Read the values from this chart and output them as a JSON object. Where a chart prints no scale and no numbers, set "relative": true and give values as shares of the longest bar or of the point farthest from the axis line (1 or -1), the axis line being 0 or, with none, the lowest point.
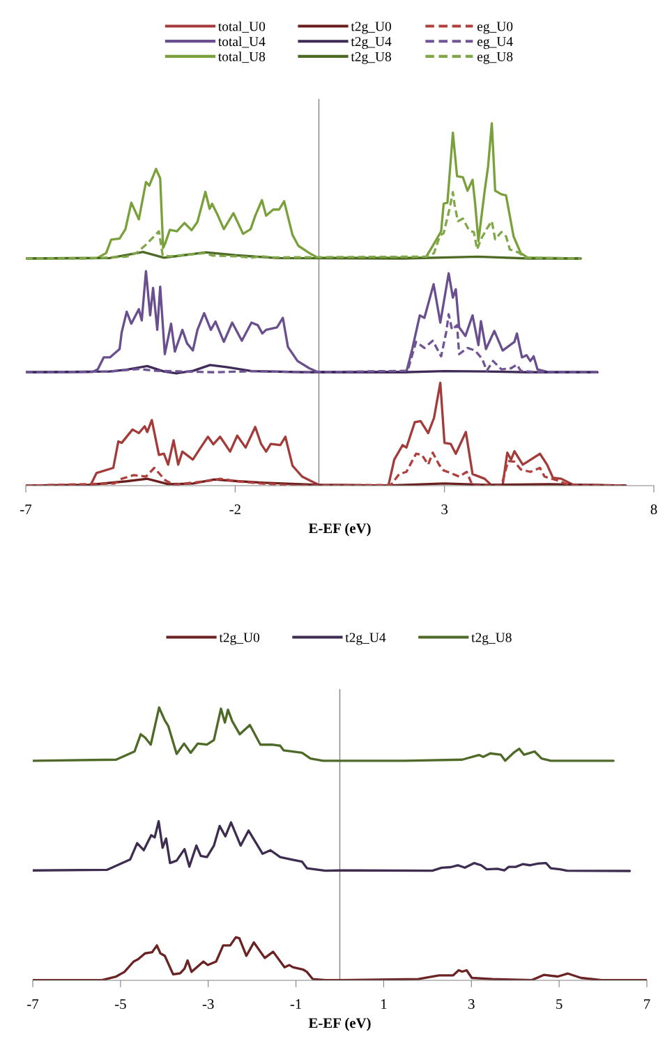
{
  "chart_data": [
    {
      "type": "line",
      "relative": true,
      "xlabel": "E-EF (eV)",
      "xlim": [
        -7,
        8
      ],
      "xticks": [
        -7,
        -2,
        3,
        8
      ],
      "tick_labels": "x",
      "grid": false,
      "legend": "top",
      "ref_lines": [
        {
          "axis": "x",
          "value": 0,
          "color": "#808080"
        }
      ],
      "series": [
        {
          "name": "total_U0",
          "color": "#a23b3a",
          "line_style": "solid",
          "x": [
            -7,
            -5.45,
            -5.31,
            -4.91,
            -4.79,
            -4.71,
            -4.45,
            -4.3,
            -4.16,
            -4.1,
            -3.99,
            -3.82,
            -3.7,
            -3.6,
            -3.47,
            -3.36,
            -3.26,
            -3.01,
            -2.84,
            -2.65,
            -2.52,
            -2.36,
            -2.12,
            -1.95,
            -1.75,
            -1.52,
            -1.38,
            -1.26,
            -1.15,
            -0.92,
            -0.8,
            -0.63,
            -0.4,
            0.0,
            1.66,
            1.8,
            2.0,
            2.09,
            2.29,
            2.43,
            2.61,
            2.75,
            2.9,
            3.0,
            3.15,
            3.27,
            3.51,
            3.67,
            3.96,
            4.13,
            4.39,
            4.5,
            4.59,
            4.67,
            4.87,
            5.28,
            5.45,
            5.59,
            5.79,
            6.08,
            7.33
          ],
          "values": [
            0,
            0.002,
            0.035,
            0.049,
            0.122,
            0.118,
            0.155,
            0.145,
            0.164,
            0.148,
            0.181,
            0.085,
            0.088,
            0.058,
            0.125,
            0.058,
            0.094,
            0.072,
            0.102,
            0.135,
            0.114,
            0.135,
            0.094,
            0.138,
            0.105,
            0.162,
            0.115,
            0.094,
            0.115,
            0.112,
            0.135,
            0.055,
            0.025,
            0.002,
            0,
            0.072,
            0.112,
            0.105,
            0.175,
            0.178,
            0.145,
            0.187,
            0.284,
            0.118,
            0.115,
            0.088,
            0.148,
            0.032,
            0.019,
            0,
            0.002,
            0.091,
            0.072,
            0.095,
            0.058,
            0.088,
            0.058,
            0.022,
            0.019,
            0.002,
            0
          ]
        },
        {
          "name": "total_U4",
          "color": "#6a4f8e",
          "line_style": "solid",
          "x": [
            -7,
            -5.4,
            -5.28,
            -5.14,
            -4.99,
            -4.76,
            -4.71,
            -4.59,
            -4.48,
            -4.3,
            -4.23,
            -4.13,
            -4.03,
            -3.96,
            -3.86,
            -3.79,
            -3.68,
            -3.53,
            -3.44,
            -3.26,
            -3.15,
            -3.01,
            -2.9,
            -2.74,
            -2.58,
            -2.47,
            -2.27,
            -2.07,
            -1.84,
            -1.61,
            -1.46,
            -1.35,
            -1.26,
            -1.0,
            -0.86,
            -0.74,
            -0.51,
            -0.23,
            -0.03,
            2.09,
            2.23,
            2.41,
            2.52,
            2.74,
            2.9,
            3.1,
            3.2,
            3.27,
            3.35,
            3.5,
            3.67,
            3.81,
            3.87,
            3.99,
            4.19,
            4.39,
            4.67,
            4.73,
            4.85,
            4.96,
            5.05,
            5.13,
            5.22,
            5.45,
            6.65
          ],
          "values": [
            0.313,
            0.314,
            0.321,
            0.354,
            0.354,
            0.377,
            0.423,
            0.48,
            0.447,
            0.487,
            0.456,
            0.592,
            0.47,
            0.546,
            0.43,
            0.549,
            0.363,
            0.447,
            0.37,
            0.43,
            0.393,
            0.373,
            0.43,
            0.476,
            0.43,
            0.453,
            0.397,
            0.45,
            0.4,
            0.45,
            0.443,
            0.42,
            0.43,
            0.437,
            0.463,
            0.383,
            0.344,
            0.324,
            0.314,
            0.314,
            0.377,
            0.47,
            0.463,
            0.556,
            0.45,
            0.586,
            0.519,
            0.542,
            0.437,
            0.413,
            0.47,
            0.388,
            0.454,
            0.377,
            0.427,
            0.373,
            0.397,
            0.42,
            0.354,
            0.36,
            0.344,
            0.357,
            0.321,
            0.314,
            0.313
          ]
        },
        {
          "name": "total_U8",
          "color": "#7aa03c",
          "line_style": "solid",
          "x": [
            -7,
            -5.28,
            -5.08,
            -4.96,
            -4.76,
            -4.62,
            -4.48,
            -4.3,
            -4.13,
            -4.05,
            -3.89,
            -3.79,
            -3.72,
            -3.67,
            -3.56,
            -3.39,
            -3.21,
            -3.04,
            -2.9,
            -2.71,
            -2.61,
            -2.55,
            -2.41,
            -2.27,
            -2.04,
            -1.81,
            -1.63,
            -1.52,
            -1.36,
            -1.26,
            -1.09,
            -0.95,
            -0.83,
            -0.63,
            -0.49,
            -0.23,
            -0.03,
            2.55,
            2.75,
            2.92,
            2.98,
            3.07,
            3.2,
            3.3,
            3.44,
            3.55,
            3.67,
            3.73,
            3.81,
            3.96,
            4.04,
            4.13,
            4.21,
            4.36,
            4.47,
            4.65,
            4.82,
            4.99,
            6.25
          ],
          "values": [
            0.627,
            0.629,
            0.642,
            0.679,
            0.682,
            0.708,
            0.781,
            0.735,
            0.838,
            0.828,
            0.874,
            0.848,
            0.656,
            0.669,
            0.706,
            0.702,
            0.725,
            0.705,
            0.728,
            0.811,
            0.764,
            0.778,
            0.745,
            0.708,
            0.752,
            0.695,
            0.708,
            0.745,
            0.788,
            0.745,
            0.762,
            0.762,
            0.785,
            0.692,
            0.662,
            0.642,
            0.629,
            0.629,
            0.668,
            0.702,
            0.778,
            0.781,
            0.974,
            0.854,
            0.851,
            0.814,
            0.844,
            0.781,
            0.675,
            0.814,
            0.88,
            1.0,
            0.814,
            0.804,
            0.801,
            0.688,
            0.642,
            0.629,
            0.627
          ]
        },
        {
          "name": "t2g_U0",
          "color": "#6b1e1e",
          "line_style": "solid",
          "x": [
            -7,
            -5.5,
            -4.6,
            -4.1,
            -3.6,
            -3.0,
            -2.5,
            -1.9,
            -1.3,
            0,
            1.6,
            3.0,
            4.0,
            5.5,
            7.33
          ],
          "values": [
            0,
            0.002,
            0.012,
            0.019,
            0.004,
            0.006,
            0.017,
            0.012,
            0.008,
            0.002,
            0,
            0.006,
            0.002,
            0.004,
            0
          ]
        },
        {
          "name": "t2g_U4",
          "color": "#3f2b57",
          "line_style": "solid",
          "x": [
            -7,
            -5,
            -4.6,
            -4.1,
            -3.7,
            -3.4,
            -3.0,
            -2.6,
            -2.2,
            -1.6,
            -0.3,
            2.0,
            3.0,
            4.0,
            5.0,
            6.65
          ],
          "values": [
            0.313,
            0.315,
            0.32,
            0.33,
            0.315,
            0.31,
            0.317,
            0.333,
            0.327,
            0.316,
            0.313,
            0.313,
            0.316,
            0.315,
            0.313,
            0.313
          ]
        },
        {
          "name": "t2g_U8",
          "color": "#4e6b26",
          "line_style": "solid",
          "x": [
            -7,
            -5,
            -4.2,
            -3.7,
            -2.7,
            -2.0,
            -1.0,
            2.0,
            3.8,
            5.0,
            6.25
          ],
          "values": [
            0.627,
            0.628,
            0.645,
            0.629,
            0.644,
            0.636,
            0.628,
            0.627,
            0.632,
            0.627,
            0.627
          ]
        },
        {
          "name": "eg_U0",
          "color": "#b0403e",
          "line_style": "dashed",
          "x": [
            -7,
            -4.88,
            -4.71,
            -4.42,
            -4.13,
            -3.93,
            -3.67,
            -3.47,
            -2.52,
            -2.36,
            -1.95,
            -1.38,
            -0.5,
            1.72,
            1.92,
            2.09,
            2.32,
            2.46,
            2.61,
            2.72,
            2.87,
            2.98,
            3.15,
            3.35,
            3.53,
            3.67,
            4.36,
            4.52,
            4.67,
            4.82,
            5.05,
            5.28,
            5.39,
            5.68,
            5.97,
            7.33
          ],
          "values": [
            0,
            0.006,
            0.019,
            0.029,
            0.025,
            0.049,
            0.015,
            0.002,
            0.015,
            0.019,
            0.012,
            0.006,
            0,
            0.002,
            0.032,
            0.038,
            0.088,
            0.085,
            0.058,
            0.091,
            0.058,
            0.042,
            0.035,
            0.025,
            0.038,
            0,
            0,
            0.068,
            0.066,
            0.045,
            0.038,
            0.049,
            0.025,
            0.015,
            0.002,
            0
          ]
        },
        {
          "name": "eg_U4",
          "color": "#6f5496",
          "line_style": "dashed",
          "x": [
            -7,
            -5.0,
            -4.3,
            -3.9,
            -2.5,
            -1.5,
            -0.2,
            2.12,
            2.32,
            2.52,
            2.72,
            2.92,
            3.04,
            3.1,
            3.18,
            3.3,
            3.35,
            3.55,
            3.73,
            3.9,
            4.01,
            4.16,
            4.36,
            4.59,
            4.73,
            4.82,
            5.1,
            6.65
          ],
          "values": [
            0.313,
            0.315,
            0.322,
            0.317,
            0.313,
            0.316,
            0.313,
            0.317,
            0.397,
            0.38,
            0.4,
            0.357,
            0.423,
            0.473,
            0.43,
            0.443,
            0.363,
            0.38,
            0.373,
            0.35,
            0.317,
            0.344,
            0.321,
            0.324,
            0.334,
            0.317,
            0.314,
            0.313
          ]
        },
        {
          "name": "eg_U8",
          "color": "#80a848",
          "line_style": "dashed",
          "x": [
            -7,
            -5.5,
            -4.6,
            -4.36,
            -4.13,
            -3.82,
            -3.73,
            -3.56,
            -2.71,
            -2.55,
            -1.96,
            -1.61,
            -1.38,
            -1.09,
            2.58,
            2.75,
            2.89,
            2.98,
            3.12,
            3.2,
            3.24,
            3.32,
            3.44,
            3.59,
            3.7,
            3.78,
            3.87,
            4.01,
            4.13,
            4.21,
            4.36,
            4.47,
            4.56,
            4.76,
            4.94,
            6.25
          ],
          "values": [
            0.627,
            0.627,
            0.632,
            0.642,
            0.665,
            0.702,
            0.635,
            0.633,
            0.642,
            0.635,
            0.633,
            0.629,
            0.633,
            0.63,
            0.632,
            0.642,
            0.69,
            0.697,
            0.764,
            0.81,
            0.776,
            0.73,
            0.737,
            0.704,
            0.7,
            0.652,
            0.68,
            0.709,
            0.73,
            0.68,
            0.7,
            0.688,
            0.652,
            0.644,
            0.629,
            0.627
          ]
        }
      ]
    },
    {
      "type": "line",
      "relative": true,
      "xlabel": "E-EF (eV)",
      "xlim": [
        -7,
        7
      ],
      "xticks": [
        -7,
        -5,
        -3,
        -1,
        1,
        3,
        5,
        7
      ],
      "tick_labels": "x",
      "grid": false,
      "legend": "top",
      "ref_lines": [
        {
          "axis": "x",
          "value": 0,
          "color": "#808080"
        }
      ],
      "series": [
        {
          "name": "t2g_U0",
          "color": "#6b2222",
          "line_style": "solid",
          "x": [
            -7,
            -5.42,
            -5.1,
            -4.91,
            -4.7,
            -4.6,
            -4.44,
            -4.28,
            -4.17,
            -4.09,
            -3.99,
            -3.8,
            -3.64,
            -3.54,
            -3.47,
            -3.38,
            -3.11,
            -3.01,
            -2.82,
            -2.66,
            -2.5,
            -2.37,
            -2.29,
            -2.13,
            -1.96,
            -1.71,
            -1.52,
            -1.26,
            -1.15,
            -1.07,
            -0.83,
            -0.75,
            -0.62,
            -0.33,
            0.0,
            1.79,
            2.26,
            2.58,
            2.71,
            2.79,
            2.89,
            3.01,
            3.48,
            4.38,
            4.65,
            4.97,
            5.2,
            5.5,
            5.97,
            7.0
          ],
          "values": [
            0.001,
            0.001,
            0.014,
            0.031,
            0.069,
            0.077,
            0.099,
            0.103,
            0.128,
            0.099,
            0.09,
            0.022,
            0.026,
            0.043,
            0.073,
            0.031,
            0.069,
            0.056,
            0.069,
            0.128,
            0.128,
            0.158,
            0.154,
            0.09,
            0.139,
            0.082,
            0.105,
            0.048,
            0.056,
            0.048,
            0.039,
            0.031,
            0.005,
            0.001,
            0.001,
            0.005,
            0.018,
            0.018,
            0.037,
            0.032,
            0.037,
            0.009,
            0.005,
            0.001,
            0.02,
            0.014,
            0.025,
            0.009,
            0.001,
            0.001
          ]
        },
        {
          "name": "t2g_U4",
          "color": "#3e2d50",
          "line_style": "solid",
          "x": [
            -7,
            -5.31,
            -4.78,
            -4.62,
            -4.47,
            -4.3,
            -4.22,
            -4.13,
            -4.04,
            -3.96,
            -3.87,
            -3.72,
            -3.54,
            -3.43,
            -3.27,
            -3.17,
            -3.03,
            -2.87,
            -2.74,
            -2.61,
            -2.48,
            -2.26,
            -2.08,
            -1.76,
            -1.58,
            -1.36,
            -1.1,
            -0.86,
            -0.75,
            -0.33,
            0.0,
            2.11,
            2.32,
            2.53,
            2.69,
            2.85,
            3.06,
            3.22,
            3.35,
            3.59,
            3.75,
            3.85,
            4.01,
            4.17,
            4.33,
            4.52,
            4.7,
            4.81,
            5.02,
            5.18,
            6.61
          ],
          "values": [
            0.403,
            0.405,
            0.443,
            0.503,
            0.477,
            0.532,
            0.524,
            0.583,
            0.486,
            0.52,
            0.43,
            0.439,
            0.481,
            0.417,
            0.494,
            0.456,
            0.452,
            0.494,
            0.566,
            0.528,
            0.579,
            0.494,
            0.549,
            0.464,
            0.477,
            0.452,
            0.443,
            0.435,
            0.411,
            0.402,
            0.403,
            0.402,
            0.413,
            0.415,
            0.422,
            0.413,
            0.43,
            0.422,
            0.407,
            0.409,
            0.403,
            0.416,
            0.416,
            0.426,
            0.422,
            0.428,
            0.43,
            0.411,
            0.407,
            0.402,
            0.401
          ]
        },
        {
          "name": "t2g_U8",
          "color": "#4f6a28",
          "line_style": "solid",
          "x": [
            -7,
            -5.1,
            -4.68,
            -4.54,
            -4.44,
            -4.31,
            -4.12,
            -3.99,
            -3.91,
            -3.72,
            -3.55,
            -3.4,
            -3.24,
            -3.03,
            -2.87,
            -2.71,
            -2.62,
            -2.55,
            -2.45,
            -2.28,
            -2.05,
            -1.81,
            -1.55,
            -1.36,
            -1.28,
            -0.86,
            -0.67,
            -0.38,
            0.0,
            1.47,
            2.79,
            3.17,
            3.27,
            3.43,
            3.67,
            3.77,
            3.96,
            4.09,
            4.2,
            4.44,
            4.6,
            4.81,
            6.24
          ],
          "values": [
            0.805,
            0.809,
            0.839,
            0.902,
            0.89,
            0.864,
            1.0,
            0.953,
            0.932,
            0.83,
            0.868,
            0.834,
            0.868,
            0.864,
            0.881,
            0.996,
            0.945,
            0.992,
            0.949,
            0.902,
            0.936,
            0.864,
            0.864,
            0.86,
            0.843,
            0.834,
            0.813,
            0.805,
            0.805,
            0.805,
            0.809,
            0.826,
            0.819,
            0.832,
            0.827,
            0.805,
            0.834,
            0.849,
            0.827,
            0.839,
            0.813,
            0.805,
            0.805
          ]
        }
      ]
    }
  ]
}
